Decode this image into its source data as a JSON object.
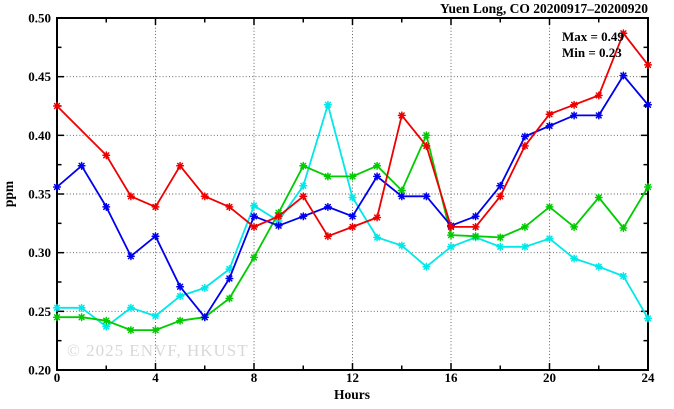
{
  "chart": {
    "title": "Yuen Long, CO 20200917–20200920",
    "annotation_max": "Max = 0.49",
    "annotation_min": "Min = 0.23",
    "xlabel": "Hours",
    "ylabel": "ppm",
    "watermark": "© 2025 ENVF, HKUST",
    "x_tick_labels": [
      "0",
      "4",
      "8",
      "12",
      "16",
      "20",
      "24"
    ],
    "y_tick_labels": [
      "0.20",
      "0.25",
      "0.30",
      "0.35",
      "0.40",
      "0.45",
      "0.50"
    ]
  },
  "chart_data": {
    "type": "line",
    "title": "Yuen Long, CO 20200917–20200920",
    "xlabel": "Hours",
    "ylabel": "ppm",
    "xlim": [
      0,
      24
    ],
    "ylim": [
      0.2,
      0.5
    ],
    "x_major_ticks": [
      0,
      4,
      8,
      12,
      16,
      20,
      24
    ],
    "x_minor_ticks": [
      2,
      6,
      10,
      14,
      18,
      22
    ],
    "y_major_ticks": [
      0.2,
      0.25,
      0.3,
      0.35,
      0.4,
      0.45,
      0.5
    ],
    "y_minor_ticks": [
      0.225,
      0.275,
      0.325,
      0.375,
      0.425,
      0.475
    ],
    "grid": "dotted lines at interior major ticks",
    "legend": "none",
    "marker": "star",
    "annotations": {
      "max": 0.49,
      "min": 0.23
    },
    "x": [
      0,
      1,
      2,
      3,
      4,
      5,
      6,
      7,
      8,
      9,
      10,
      11,
      12,
      13,
      14,
      15,
      16,
      17,
      18,
      19,
      20,
      21,
      22,
      23,
      24
    ],
    "series": [
      {
        "name": "cyan",
        "color": "#00e8e8",
        "values": [
          0.253,
          0.253,
          0.237,
          0.253,
          0.246,
          0.263,
          0.27,
          0.286,
          0.34,
          0.327,
          0.357,
          0.426,
          0.347,
          0.313,
          0.306,
          0.288,
          0.305,
          0.313,
          0.305,
          0.305,
          0.312,
          0.295,
          0.288,
          0.28,
          0.244
        ]
      },
      {
        "name": "green",
        "color": "#00cc00",
        "values": [
          0.245,
          0.245,
          0.242,
          0.234,
          0.234,
          0.242,
          0.245,
          0.261,
          0.296,
          0.334,
          0.374,
          0.365,
          0.365,
          0.374,
          0.353,
          0.4,
          0.315,
          0.314,
          0.313,
          0.322,
          0.339,
          0.322,
          0.347,
          0.321,
          0.356
        ]
      },
      {
        "name": "blue",
        "color": "#0000ee",
        "values": [
          0.356,
          0.374,
          0.339,
          0.297,
          0.314,
          0.271,
          0.245,
          0.278,
          0.331,
          0.323,
          0.331,
          0.339,
          0.331,
          0.365,
          0.348,
          0.348,
          0.323,
          0.331,
          0.357,
          0.399,
          0.408,
          0.417,
          0.417,
          0.451,
          0.426
        ]
      },
      {
        "name": "red",
        "color": "#ee0000",
        "values": [
          0.425,
          null,
          0.383,
          0.348,
          0.339,
          0.374,
          0.348,
          0.339,
          0.322,
          0.331,
          0.348,
          0.314,
          0.322,
          0.33,
          0.417,
          0.391,
          0.322,
          0.322,
          0.348,
          0.391,
          0.418,
          0.426,
          0.434,
          0.487,
          0.46
        ]
      }
    ]
  }
}
